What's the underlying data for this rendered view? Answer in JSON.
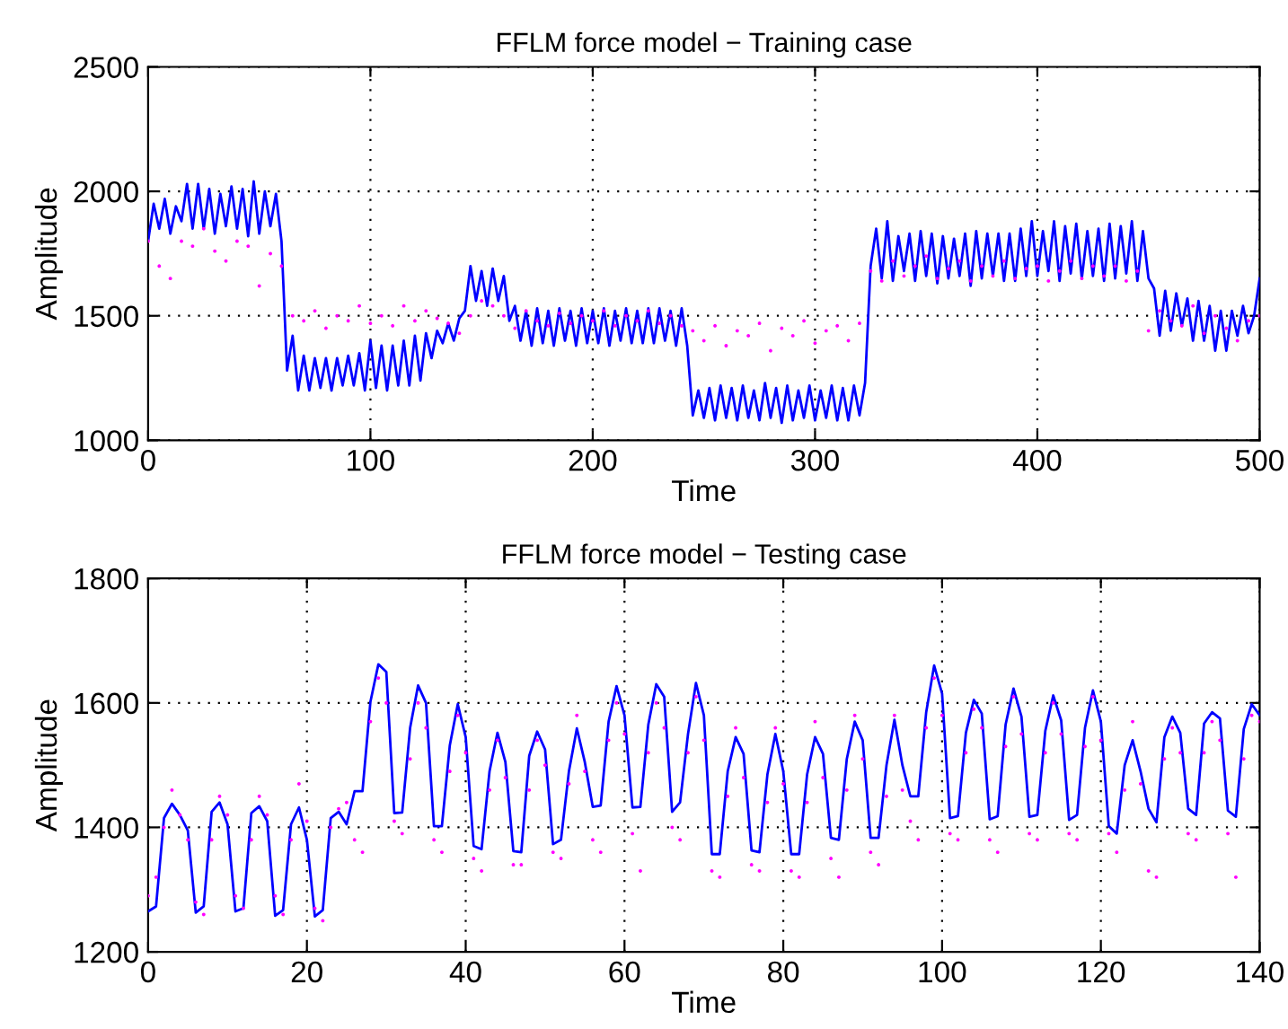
{
  "chart_data": [
    {
      "type": "line",
      "title": "FFLM force model − Training case",
      "xlabel": "Time",
      "ylabel": "Amplitude",
      "xlim": [
        0,
        500
      ],
      "xticks": [
        0,
        100,
        200,
        300,
        400,
        500
      ],
      "ylim": [
        1000,
        2500
      ],
      "yticks": [
        1000,
        1500,
        2000,
        2500
      ],
      "grid": true,
      "line_style": "solid",
      "series": [
        {
          "type": "scatter",
          "marker": "circle",
          "color": "#ff00ff",
          "x": [
            0,
            5,
            10,
            15,
            20,
            25,
            30,
            35,
            40,
            45,
            50,
            55,
            60,
            65,
            70,
            75,
            80,
            85,
            90,
            95,
            100,
            105,
            110,
            115,
            120,
            125,
            130,
            135,
            140,
            145,
            150,
            155,
            160,
            165,
            170,
            175,
            180,
            185,
            190,
            195,
            200,
            205,
            210,
            215,
            220,
            225,
            230,
            235,
            240,
            245,
            250,
            255,
            260,
            265,
            270,
            275,
            280,
            285,
            290,
            295,
            300,
            305,
            310,
            315,
            320,
            325,
            330,
            335,
            340,
            345,
            350,
            355,
            360,
            365,
            370,
            375,
            380,
            385,
            390,
            395,
            400,
            405,
            410,
            415,
            420,
            425,
            430,
            435,
            440,
            445,
            450,
            455,
            460,
            465,
            470,
            475,
            480,
            485,
            490,
            495,
            500
          ],
          "values": [
            1800,
            1700,
            1650,
            1800,
            1780,
            1850,
            1760,
            1720,
            1800,
            1780,
            1620,
            1750,
            1700,
            1500,
            1480,
            1520,
            1450,
            1500,
            1480,
            1540,
            1470,
            1500,
            1460,
            1540,
            1480,
            1520,
            1490,
            1470,
            1430,
            1500,
            1560,
            1540,
            1500,
            1450,
            1520,
            1480,
            1460,
            1510,
            1470,
            1500,
            1480,
            1520,
            1460,
            1500,
            1480,
            1520,
            1470,
            1500,
            1460,
            1440,
            1400,
            1460,
            1380,
            1440,
            1420,
            1470,
            1360,
            1450,
            1420,
            1480,
            1390,
            1440,
            1460,
            1400,
            1470,
            1680,
            1640,
            1720,
            1660,
            1700,
            1740,
            1650,
            1690,
            1720,
            1640,
            1700,
            1660,
            1720,
            1650,
            1690,
            1700,
            1640,
            1680,
            1720,
            1650,
            1700,
            1660,
            1700,
            1640,
            1680,
            1440,
            1520,
            1480,
            1460,
            1540,
            1430,
            1500,
            1450,
            1400,
            1480,
            1500
          ]
        },
        {
          "marker": "none",
          "color": "#0000ff",
          "x": [
            0,
            2.5,
            5,
            7.5,
            10,
            12.5,
            15,
            17.5,
            20,
            22.5,
            25,
            27.5,
            30,
            32.5,
            35,
            37.5,
            40,
            42.5,
            45,
            47.5,
            50,
            52.5,
            55,
            57.5,
            60,
            62.5,
            65,
            67.5,
            70,
            72.5,
            75,
            77.5,
            80,
            82.5,
            85,
            87.5,
            90,
            92.5,
            95,
            97.5,
            100,
            102.5,
            105,
            107.5,
            110,
            112.5,
            115,
            117.5,
            120,
            122.5,
            125,
            127.5,
            130,
            132.5,
            135,
            137.5,
            140,
            142.5,
            145,
            147.5,
            150,
            152.5,
            155,
            157.5,
            160,
            162.5,
            165,
            167.5,
            170,
            172.5,
            175,
            177.5,
            180,
            182.5,
            185,
            187.5,
            190,
            192.5,
            195,
            197.5,
            200,
            202.5,
            205,
            207.5,
            210,
            212.5,
            215,
            217.5,
            220,
            222.5,
            225,
            227.5,
            230,
            232.5,
            235,
            237.5,
            240,
            242.5,
            245,
            247.5,
            250,
            252.5,
            255,
            257.5,
            260,
            262.5,
            265,
            267.5,
            270,
            272.5,
            275,
            277.5,
            280,
            282.5,
            285,
            287.5,
            290,
            292.5,
            295,
            297.5,
            300,
            302.5,
            305,
            307.5,
            310,
            312.5,
            315,
            317.5,
            320,
            322.5,
            325,
            327.5,
            330,
            332.5,
            335,
            337.5,
            340,
            342.5,
            345,
            347.5,
            350,
            352.5,
            355,
            357.5,
            360,
            362.5,
            365,
            367.5,
            370,
            372.5,
            375,
            377.5,
            380,
            382.5,
            385,
            387.5,
            390,
            392.5,
            395,
            397.5,
            400,
            402.5,
            405,
            407.5,
            410,
            412.5,
            415,
            417.5,
            420,
            422.5,
            425,
            427.5,
            430,
            432.5,
            435,
            437.5,
            440,
            442.5,
            445,
            447.5,
            450,
            452.5,
            455,
            457.5,
            460,
            462.5,
            465,
            467.5,
            470,
            472.5,
            475,
            477.5,
            480,
            482.5,
            485,
            487.5,
            490,
            492.5,
            495,
            497.5,
            500
          ],
          "values": [
            1800,
            1950,
            1850,
            1970,
            1830,
            1940,
            1880,
            2030,
            1850,
            2030,
            1850,
            2010,
            1830,
            1990,
            1860,
            2020,
            1850,
            2010,
            1820,
            2040,
            1830,
            2000,
            1860,
            1990,
            1800,
            1280,
            1420,
            1200,
            1340,
            1200,
            1330,
            1210,
            1330,
            1200,
            1330,
            1220,
            1340,
            1220,
            1350,
            1200,
            1400,
            1210,
            1380,
            1200,
            1380,
            1220,
            1400,
            1220,
            1420,
            1240,
            1430,
            1330,
            1440,
            1390,
            1470,
            1400,
            1490,
            1520,
            1700,
            1560,
            1680,
            1540,
            1690,
            1560,
            1660,
            1480,
            1540,
            1400,
            1520,
            1380,
            1530,
            1390,
            1520,
            1380,
            1530,
            1400,
            1520,
            1380,
            1530,
            1390,
            1520,
            1390,
            1530,
            1380,
            1520,
            1400,
            1530,
            1390,
            1520,
            1390,
            1530,
            1390,
            1530,
            1400,
            1520,
            1380,
            1530,
            1380,
            1100,
            1200,
            1090,
            1210,
            1080,
            1220,
            1090,
            1210,
            1080,
            1220,
            1090,
            1200,
            1080,
            1230,
            1090,
            1210,
            1070,
            1220,
            1080,
            1200,
            1090,
            1220,
            1080,
            1200,
            1090,
            1220,
            1080,
            1210,
            1080,
            1220,
            1100,
            1230,
            1700,
            1850,
            1650,
            1880,
            1640,
            1820,
            1680,
            1830,
            1640,
            1840,
            1660,
            1830,
            1630,
            1820,
            1650,
            1810,
            1660,
            1830,
            1620,
            1840,
            1650,
            1830,
            1660,
            1830,
            1640,
            1830,
            1640,
            1850,
            1660,
            1880,
            1660,
            1840,
            1680,
            1880,
            1640,
            1860,
            1670,
            1870,
            1650,
            1840,
            1660,
            1850,
            1640,
            1870,
            1650,
            1860,
            1670,
            1880,
            1640,
            1840,
            1650,
            1610,
            1420,
            1600,
            1440,
            1590,
            1460,
            1570,
            1400,
            1560,
            1400,
            1540,
            1360,
            1520,
            1360,
            1520,
            1420,
            1540,
            1430,
            1500,
            1650
          ]
        }
      ]
    },
    {
      "type": "line",
      "title": "FFLM force model − Testing case",
      "xlabel": "Time",
      "ylabel": "Amplitude",
      "xlim": [
        0,
        140
      ],
      "xticks": [
        0,
        20,
        40,
        60,
        80,
        100,
        120,
        140
      ],
      "ylim": [
        1200,
        1800
      ],
      "yticks": [
        1200,
        1400,
        1600,
        1800
      ],
      "grid": true,
      "line_style": "solid",
      "series": [
        {
          "type": "scatter",
          "marker": "circle",
          "color": "#ff00ff",
          "x": [
            0,
            1,
            2,
            3,
            4,
            5,
            6,
            7,
            8,
            9,
            10,
            11,
            12,
            13,
            14,
            15,
            16,
            17,
            18,
            19,
            20,
            21,
            22,
            23,
            24,
            25,
            26,
            27,
            28,
            29,
            30,
            31,
            32,
            33,
            34,
            35,
            36,
            37,
            38,
            39,
            40,
            41,
            42,
            43,
            44,
            45,
            46,
            47,
            48,
            49,
            50,
            51,
            52,
            53,
            54,
            55,
            56,
            57,
            58,
            59,
            60,
            61,
            62,
            63,
            64,
            65,
            66,
            67,
            68,
            69,
            70,
            71,
            72,
            73,
            74,
            75,
            76,
            77,
            78,
            79,
            80,
            81,
            82,
            83,
            84,
            85,
            86,
            87,
            88,
            89,
            90,
            91,
            92,
            93,
            94,
            95,
            96,
            97,
            98,
            99,
            100,
            101,
            102,
            103,
            104,
            105,
            106,
            107,
            108,
            109,
            110,
            111,
            112,
            113,
            114,
            115,
            116,
            117,
            118,
            119,
            120,
            121,
            122,
            123,
            124,
            125,
            126,
            127,
            128,
            129,
            130,
            131,
            132,
            133,
            134,
            135,
            136,
            137,
            138,
            139,
            140
          ],
          "values": [
            1290,
            1320,
            1400,
            1460,
            1420,
            1380,
            1280,
            1260,
            1380,
            1450,
            1420,
            1290,
            1270,
            1380,
            1450,
            1420,
            1290,
            1260,
            1380,
            1470,
            1410,
            1270,
            1250,
            1400,
            1430,
            1440,
            1380,
            1360,
            1570,
            1640,
            1600,
            1410,
            1390,
            1510,
            1600,
            1560,
            1380,
            1360,
            1490,
            1580,
            1520,
            1350,
            1330,
            1460,
            1540,
            1480,
            1340,
            1340,
            1460,
            1540,
            1500,
            1360,
            1350,
            1470,
            1580,
            1490,
            1380,
            1360,
            1540,
            1600,
            1550,
            1390,
            1330,
            1520,
            1600,
            1560,
            1400,
            1380,
            1520,
            1610,
            1540,
            1330,
            1320,
            1450,
            1560,
            1480,
            1340,
            1330,
            1440,
            1560,
            1470,
            1330,
            1320,
            1440,
            1570,
            1480,
            1350,
            1320,
            1460,
            1580,
            1510,
            1360,
            1340,
            1450,
            1580,
            1460,
            1410,
            1380,
            1560,
            1640,
            1580,
            1390,
            1380,
            1520,
            1590,
            1560,
            1380,
            1360,
            1530,
            1610,
            1550,
            1390,
            1380,
            1520,
            1600,
            1550,
            1390,
            1380,
            1530,
            1610,
            1540,
            1390,
            1360,
            1460,
            1570,
            1470,
            1330,
            1320,
            1510,
            1560,
            1520,
            1390,
            1380,
            1520,
            1570,
            1540,
            1390,
            1320,
            1510,
            1580,
            1570
          ]
        },
        {
          "marker": "none",
          "color": "#0000ff",
          "x": [
            0,
            1,
            2,
            3,
            4,
            5,
            6,
            7,
            8,
            9,
            10,
            11,
            12,
            13,
            14,
            15,
            16,
            17,
            18,
            19,
            20,
            21,
            22,
            23,
            24,
            25,
            26,
            27,
            28,
            29,
            30,
            31,
            32,
            33,
            34,
            35,
            36,
            37,
            38,
            39,
            40,
            41,
            42,
            43,
            44,
            45,
            46,
            47,
            48,
            49,
            50,
            51,
            52,
            53,
            54,
            55,
            56,
            57,
            58,
            59,
            60,
            61,
            62,
            63,
            64,
            65,
            66,
            67,
            68,
            69,
            70,
            71,
            72,
            73,
            74,
            75,
            76,
            77,
            78,
            79,
            80,
            81,
            82,
            83,
            84,
            85,
            86,
            87,
            88,
            89,
            90,
            91,
            92,
            93,
            94,
            95,
            96,
            97,
            98,
            99,
            100,
            101,
            102,
            103,
            104,
            105,
            106,
            107,
            108,
            109,
            110,
            111,
            112,
            113,
            114,
            115,
            116,
            117,
            118,
            119,
            120,
            121,
            122,
            123,
            124,
            125,
            126,
            127,
            128,
            129,
            130,
            131,
            132,
            133,
            134,
            135,
            136,
            137,
            138,
            139,
            140
          ],
          "values": [
            1265,
            1273,
            1415,
            1438,
            1420,
            1395,
            1263,
            1273,
            1425,
            1440,
            1405,
            1265,
            1270,
            1423,
            1434,
            1410,
            1258,
            1267,
            1405,
            1432,
            1380,
            1257,
            1267,
            1415,
            1425,
            1405,
            1458,
            1458,
            1602,
            1662,
            1650,
            1423,
            1424,
            1560,
            1628,
            1600,
            1402,
            1402,
            1532,
            1598,
            1545,
            1370,
            1365,
            1490,
            1552,
            1505,
            1362,
            1360,
            1515,
            1554,
            1525,
            1373,
            1380,
            1490,
            1559,
            1505,
            1433,
            1435,
            1570,
            1627,
            1580,
            1432,
            1433,
            1565,
            1630,
            1610,
            1425,
            1440,
            1550,
            1632,
            1580,
            1357,
            1357,
            1490,
            1545,
            1518,
            1363,
            1360,
            1485,
            1550,
            1490,
            1357,
            1357,
            1485,
            1545,
            1518,
            1383,
            1380,
            1510,
            1570,
            1540,
            1383,
            1383,
            1500,
            1573,
            1500,
            1450,
            1450,
            1585,
            1660,
            1615,
            1415,
            1418,
            1552,
            1605,
            1583,
            1413,
            1418,
            1565,
            1623,
            1578,
            1417,
            1420,
            1555,
            1612,
            1572,
            1412,
            1420,
            1560,
            1620,
            1570,
            1402,
            1390,
            1500,
            1540,
            1490,
            1430,
            1408,
            1545,
            1578,
            1552,
            1430,
            1420,
            1567,
            1585,
            1575,
            1427,
            1417,
            1558,
            1598,
            1580
          ]
        }
      ]
    }
  ]
}
